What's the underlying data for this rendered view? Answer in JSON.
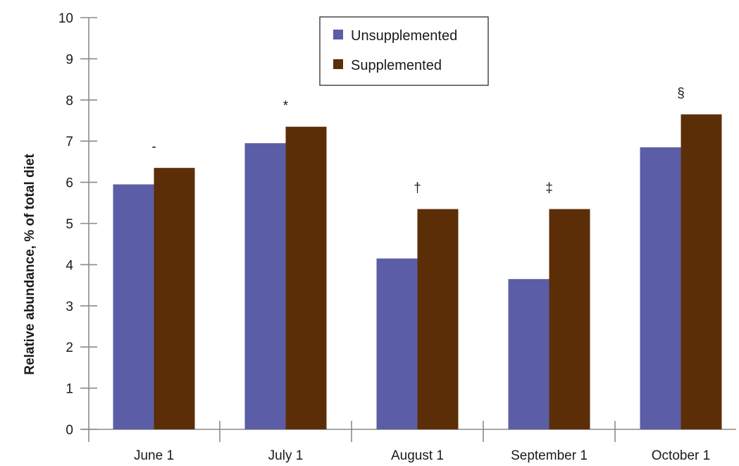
{
  "chart_data": {
    "type": "bar",
    "title": "",
    "xlabel": "",
    "ylabel": "Relative abundance, % of total diet",
    "ylim": [
      0,
      10
    ],
    "yticks": [
      0,
      1,
      2,
      3,
      4,
      5,
      6,
      7,
      8,
      9,
      10
    ],
    "categories": [
      "June 1",
      "July 1",
      "August 1",
      "September 1",
      "October 1"
    ],
    "series": [
      {
        "name": "Unsupplemented",
        "color": "#5b5ea6",
        "values": [
          5.95,
          6.95,
          4.15,
          3.65,
          6.85
        ]
      },
      {
        "name": "Supplemented",
        "color": "#5c2e08",
        "values": [
          6.35,
          7.35,
          5.35,
          5.35,
          7.65
        ]
      }
    ],
    "annotations": [
      "-",
      "*",
      "†",
      "‡",
      "§"
    ],
    "legend": "top-center",
    "grid": false
  }
}
